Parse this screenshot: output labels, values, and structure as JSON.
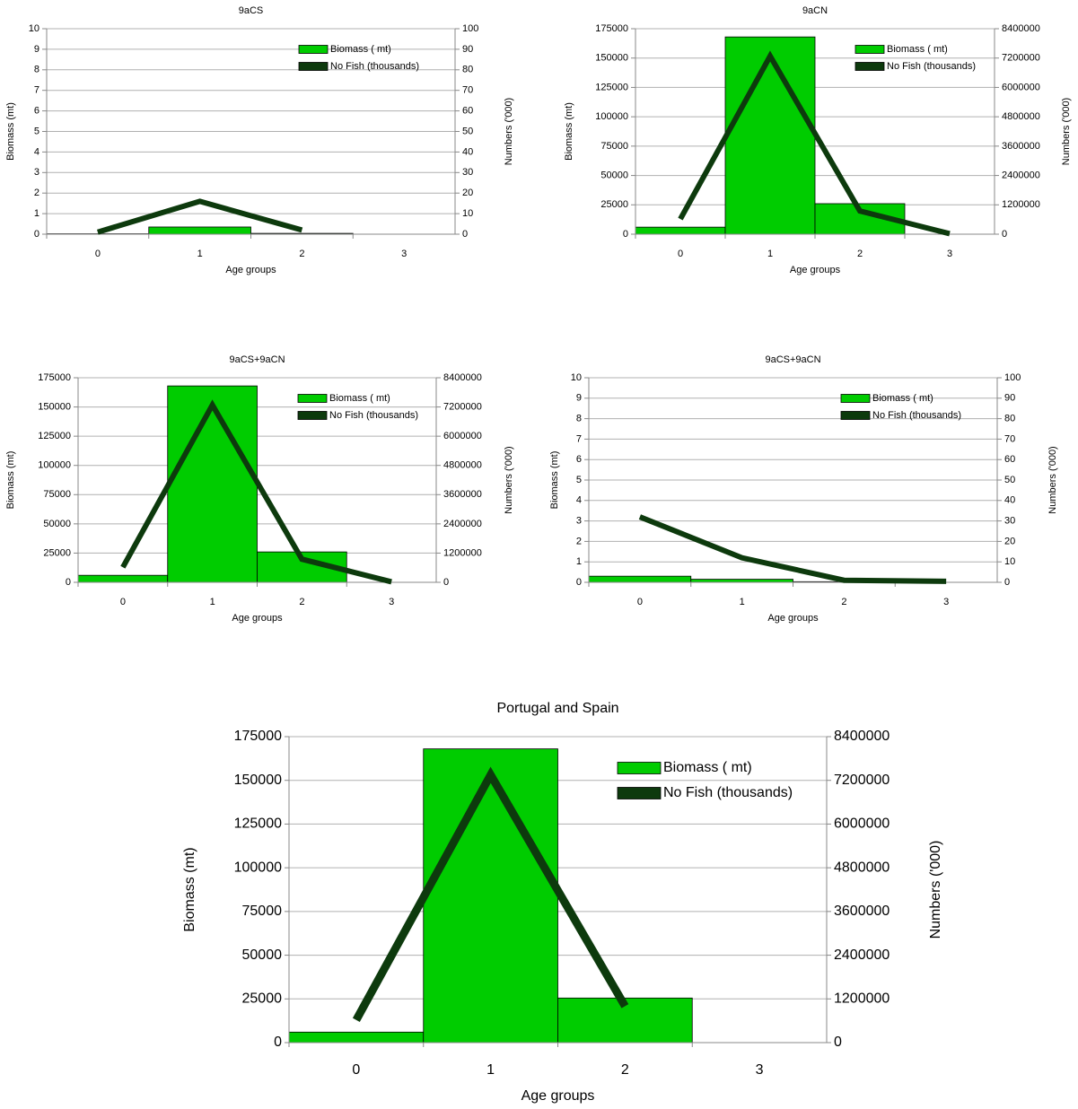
{
  "chart_data": [
    {
      "type": "combo",
      "title": "9aCS",
      "x_label": "Age groups",
      "y_label": "Biomass (mt)",
      "y2_label": "Numbers ('000)",
      "categories": [
        "0",
        "1",
        "2",
        "3"
      ],
      "ylim": [
        0,
        10
      ],
      "yticks": [
        0,
        1,
        2,
        3,
        4,
        5,
        6,
        7,
        8,
        9,
        10
      ],
      "y2lim": [
        0,
        100
      ],
      "y2ticks": [
        0,
        10,
        20,
        30,
        40,
        50,
        60,
        70,
        80,
        90,
        100
      ],
      "grid": true,
      "series": [
        {
          "name": "Biomass ( mt)",
          "type": "bar",
          "color": "#00cc00",
          "values": [
            0.02,
            0.35,
            0.04,
            0
          ]
        },
        {
          "name": "No Fish (thousands)",
          "type": "line",
          "axis": "y2",
          "color": "#0d3a0d",
          "values": [
            1,
            16,
            2,
            null
          ]
        }
      ]
    },
    {
      "type": "combo",
      "title": "9aCN",
      "x_label": "Age groups",
      "y_label": "Biomass (mt)",
      "y2_label": "Numbers ('000)",
      "categories": [
        "0",
        "1",
        "2",
        "3"
      ],
      "ylim": [
        0,
        175000
      ],
      "yticks": [
        0,
        25000,
        50000,
        75000,
        100000,
        125000,
        150000,
        175000
      ],
      "y2lim": [
        0,
        8400000
      ],
      "y2ticks": [
        0,
        1200000,
        2400000,
        3600000,
        4800000,
        6000000,
        7200000,
        8400000
      ],
      "grid": true,
      "series": [
        {
          "name": "Biomass ( mt)",
          "type": "bar",
          "color": "#00cc00",
          "values": [
            6000,
            168000,
            26000,
            0
          ]
        },
        {
          "name": "No Fish (thousands)",
          "type": "line",
          "axis": "y2",
          "color": "#0d3a0d",
          "values": [
            620000,
            7280000,
            950000,
            20000
          ]
        }
      ]
    },
    {
      "type": "combo",
      "title": "9aCS+9aCN",
      "x_label": "Age groups",
      "y_label": "Biomass (mt)",
      "y2_label": "Numbers ('000)",
      "categories": [
        "0",
        "1",
        "2",
        "3"
      ],
      "ylim": [
        0,
        175000
      ],
      "yticks": [
        0,
        25000,
        50000,
        75000,
        100000,
        125000,
        150000,
        175000
      ],
      "y2lim": [
        0,
        8400000
      ],
      "y2ticks": [
        0,
        1200000,
        2400000,
        3600000,
        4800000,
        6000000,
        7200000,
        8400000
      ],
      "grid": true,
      "series": [
        {
          "name": "Biomass ( mt)",
          "type": "bar",
          "color": "#00cc00",
          "values": [
            6000,
            168000,
            26000,
            0
          ]
        },
        {
          "name": "No Fish (thousands)",
          "type": "line",
          "axis": "y2",
          "color": "#0d3a0d",
          "values": [
            620000,
            7280000,
            950000,
            20000
          ]
        }
      ]
    },
    {
      "type": "combo",
      "title": "9aCS+9aCN",
      "x_label": "Age groups",
      "y_label": "Biomass (mt)",
      "y2_label": "Numbers ('000)",
      "categories": [
        "0",
        "1",
        "2",
        "3"
      ],
      "ylim": [
        0,
        10
      ],
      "yticks": [
        0,
        1,
        2,
        3,
        4,
        5,
        6,
        7,
        8,
        9,
        10
      ],
      "y2lim": [
        0,
        100
      ],
      "y2ticks": [
        0,
        10,
        20,
        30,
        40,
        50,
        60,
        70,
        80,
        90,
        100
      ],
      "grid": true,
      "series": [
        {
          "name": "Biomass ( mt)",
          "type": "bar",
          "color": "#00cc00",
          "values": [
            0.3,
            0.15,
            0.03,
            0
          ]
        },
        {
          "name": "No Fish (thousands)",
          "type": "line",
          "axis": "y2",
          "color": "#0d3a0d",
          "values": [
            32,
            12,
            1,
            0.5
          ]
        }
      ]
    },
    {
      "type": "combo",
      "title": "Portugal and Spain",
      "x_label": "Age groups",
      "y_label": "Biomass (mt)",
      "y2_label": "Numbers ('000)",
      "categories": [
        "0",
        "1",
        "2",
        "3"
      ],
      "ylim": [
        0,
        175000
      ],
      "yticks": [
        0,
        25000,
        50000,
        75000,
        100000,
        125000,
        150000,
        175000
      ],
      "y2lim": [
        0,
        8400000
      ],
      "y2ticks": [
        0,
        1200000,
        2400000,
        3600000,
        4800000,
        6000000,
        7200000,
        8400000
      ],
      "grid": true,
      "series": [
        {
          "name": "Biomass ( mt)",
          "type": "bar",
          "color": "#00cc00",
          "values": [
            6000,
            168000,
            25500,
            null
          ]
        },
        {
          "name": "No Fish (thousands)",
          "type": "line",
          "axis": "y2",
          "color": "#0d3a0d",
          "values": [
            620000,
            7350000,
            1000000,
            null
          ]
        }
      ]
    }
  ]
}
